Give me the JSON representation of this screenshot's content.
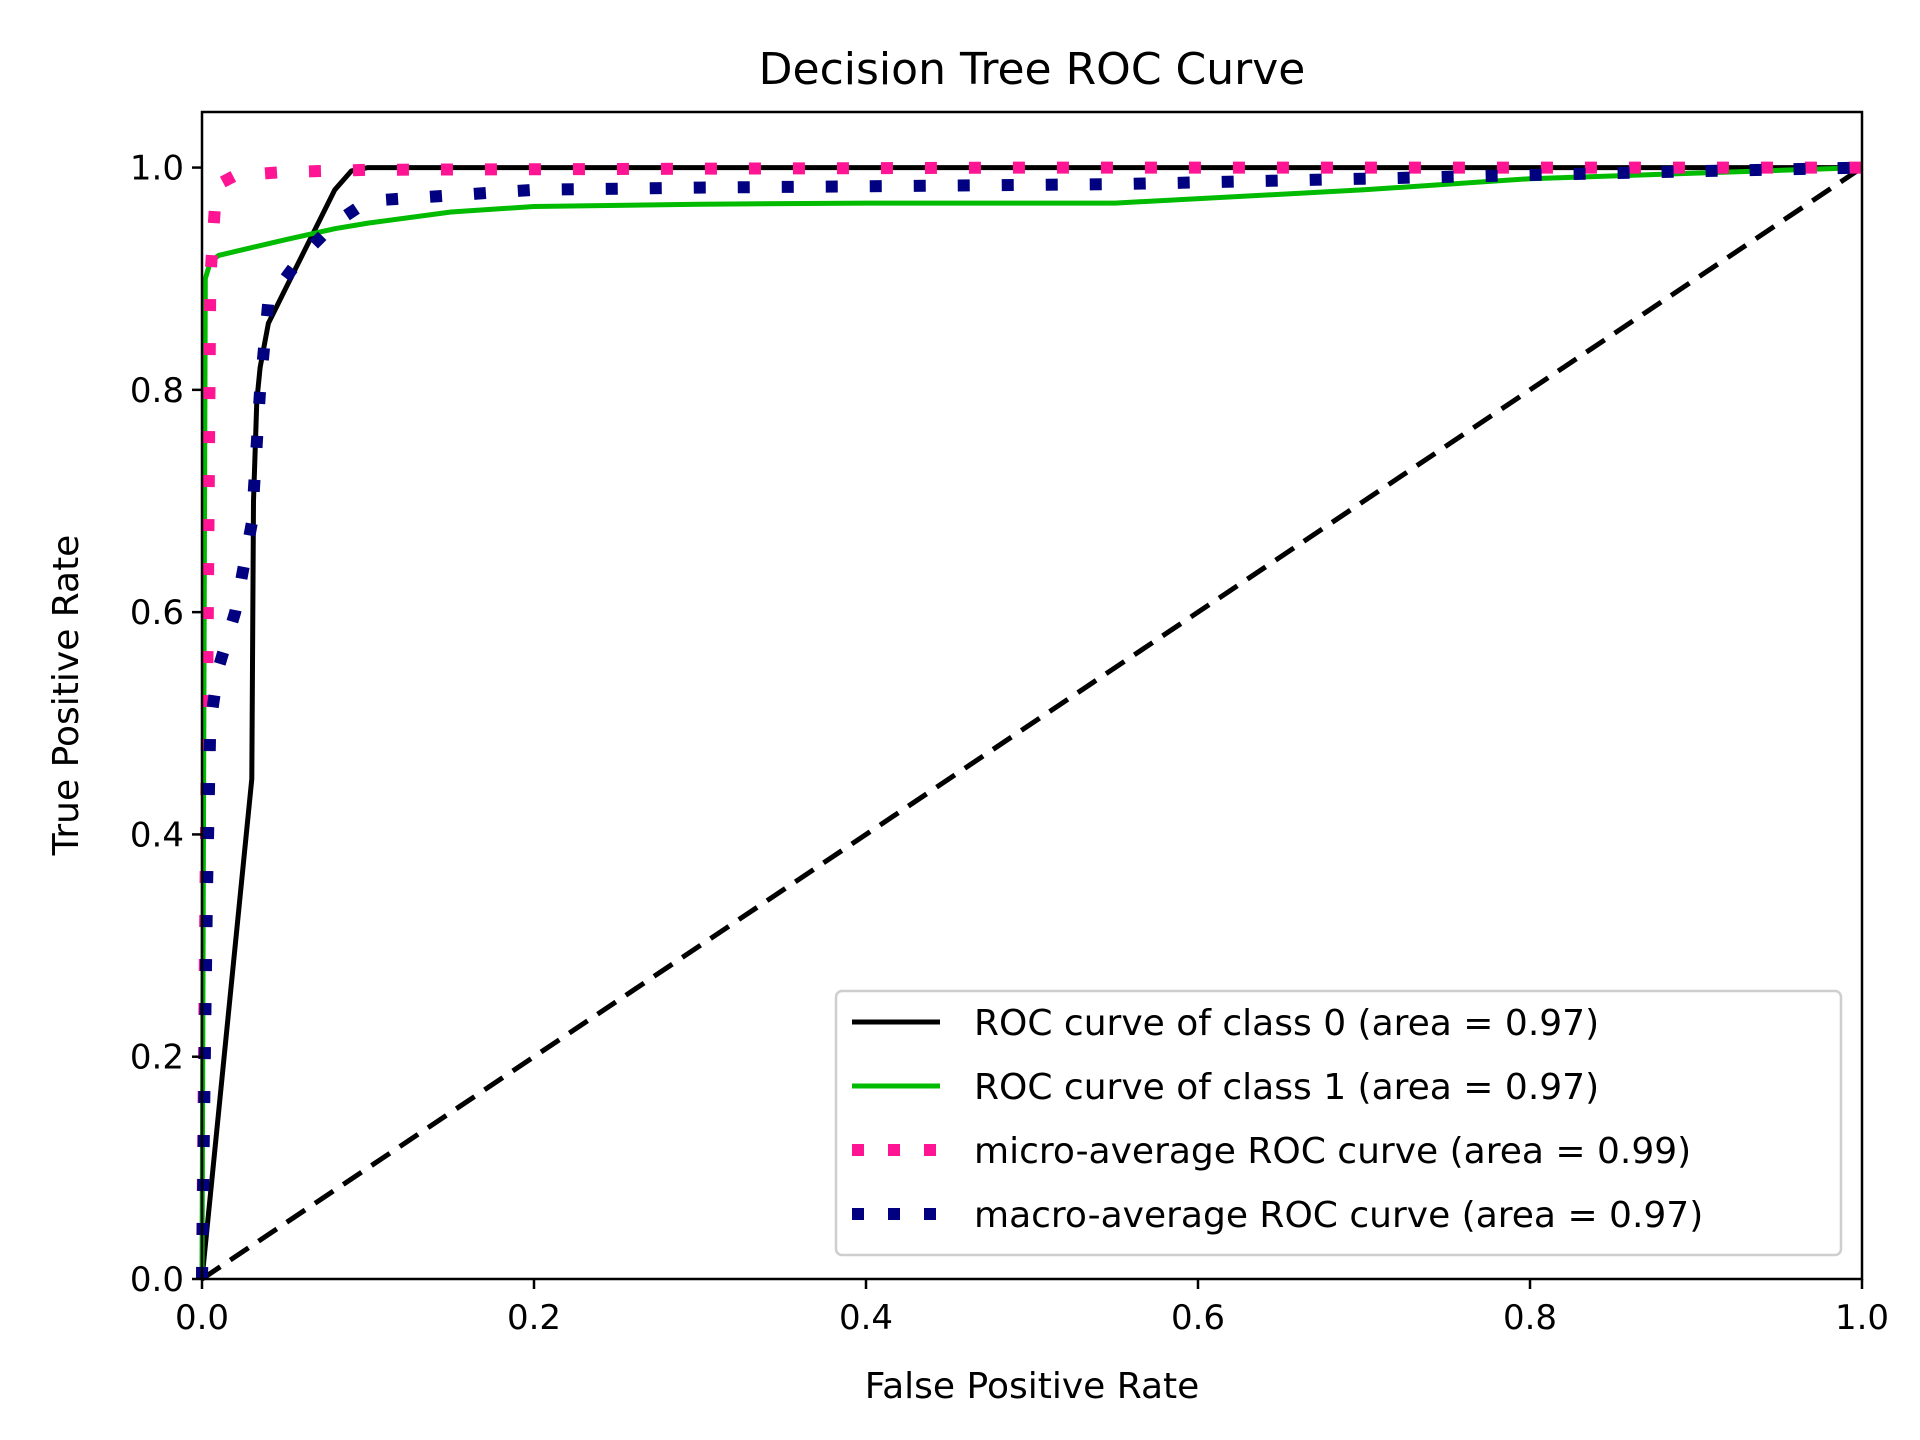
{
  "chart_data": {
    "type": "line",
    "title": "Decision Tree ROC Curve",
    "xlabel": "False Positive Rate",
    "ylabel": "True Positive Rate",
    "xlim": [
      0.0,
      1.0
    ],
    "ylim": [
      0.0,
      1.05
    ],
    "xticks": [
      "0.0",
      "0.2",
      "0.4",
      "0.6",
      "0.8",
      "1.0"
    ],
    "yticks": [
      "0.0",
      "0.2",
      "0.4",
      "0.6",
      "0.8",
      "1.0"
    ],
    "grid": false,
    "legend_position": "lower-right",
    "series": [
      {
        "name": "ROC curve of class 0 (area = 0.97)",
        "color": "#000000",
        "style": "solid",
        "x": [
          0.0,
          0.03,
          0.031,
          0.033,
          0.035,
          0.04,
          0.05,
          0.06,
          0.07,
          0.08,
          0.09,
          0.1,
          0.2,
          0.4,
          0.6,
          0.8,
          1.0
        ],
        "y": [
          0.0,
          0.45,
          0.7,
          0.79,
          0.82,
          0.86,
          0.89,
          0.92,
          0.95,
          0.98,
          0.997,
          1.0,
          1.0,
          1.0,
          1.0,
          1.0,
          1.0
        ]
      },
      {
        "name": "ROC curve of class 1 (area = 0.97)",
        "color": "#00bb00",
        "style": "solid",
        "x": [
          0.0,
          0.002,
          0.005,
          0.01,
          0.03,
          0.05,
          0.08,
          0.1,
          0.15,
          0.2,
          0.3,
          0.4,
          0.5,
          0.55,
          0.7,
          0.8,
          0.9,
          1.0
        ],
        "y": [
          0.0,
          0.9,
          0.915,
          0.921,
          0.928,
          0.935,
          0.945,
          0.95,
          0.96,
          0.965,
          0.967,
          0.968,
          0.968,
          0.968,
          0.98,
          0.99,
          0.995,
          1.0
        ]
      },
      {
        "name": "micro-average ROC curve (area = 0.99)",
        "color": "#ff1493",
        "style": "dotted",
        "x": [
          0.0,
          0.003,
          0.005,
          0.008,
          0.01,
          0.02,
          0.05,
          0.1,
          0.5,
          1.0
        ],
        "y": [
          0.0,
          0.5,
          0.9,
          0.97,
          0.985,
          0.993,
          0.996,
          0.998,
          1.0,
          1.0
        ]
      },
      {
        "name": "macro-average ROC curve (area = 0.97)",
        "color": "#000080",
        "style": "dotted",
        "x": [
          0.0,
          0.003,
          0.005,
          0.01,
          0.02,
          0.03,
          0.035,
          0.04,
          0.06,
          0.08,
          0.1,
          0.15,
          0.2,
          0.3,
          0.55,
          0.7,
          0.85,
          1.0
        ],
        "y": [
          0.0,
          0.35,
          0.5,
          0.55,
          0.6,
          0.68,
          0.8,
          0.88,
          0.92,
          0.95,
          0.97,
          0.975,
          0.98,
          0.982,
          0.985,
          0.99,
          0.995,
          1.0
        ]
      },
      {
        "name": "",
        "color": "#000000",
        "style": "dashed",
        "x": [
          0.0,
          1.0
        ],
        "y": [
          0.0,
          1.0
        ]
      }
    ]
  }
}
